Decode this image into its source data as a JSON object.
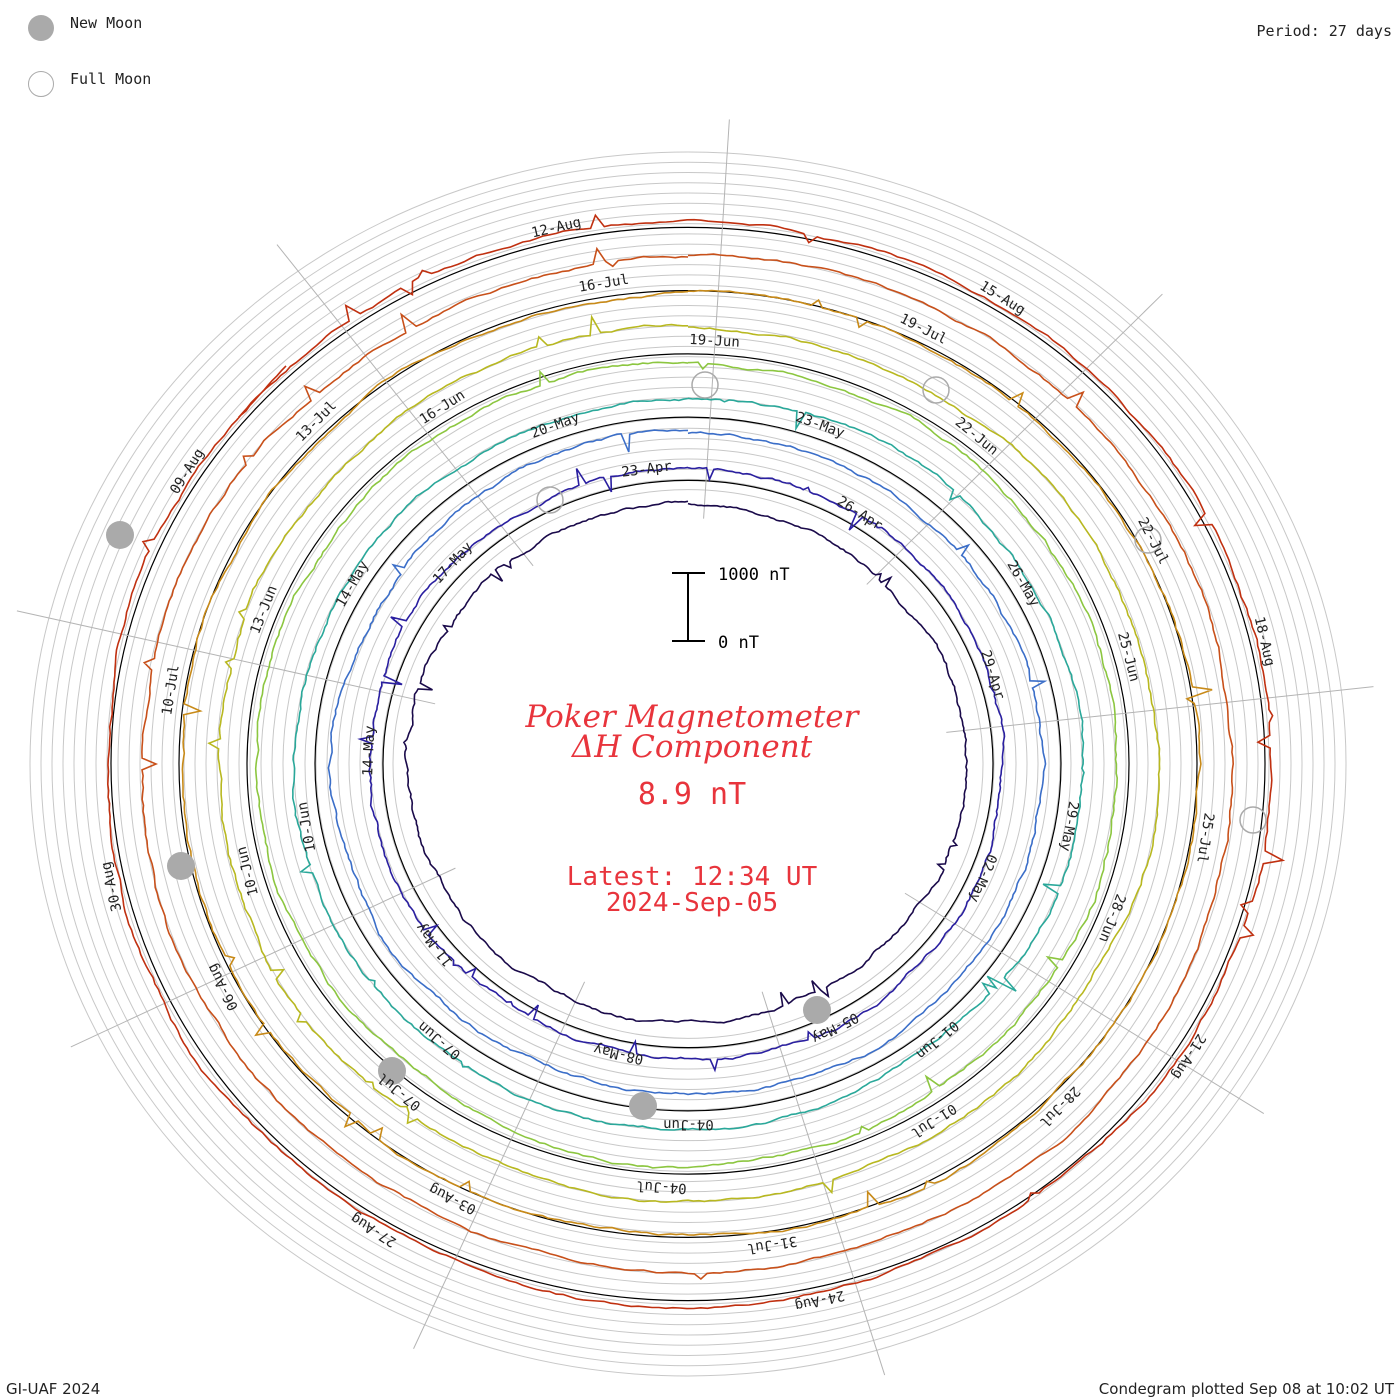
{
  "legend": {
    "new_moon": "New Moon",
    "full_moon": "Full Moon",
    "period": "Period: 27 days"
  },
  "footer": {
    "credit": "GI-UAF 2024",
    "plotted": "Condegram plotted Sep 08 at 10:02 UT"
  },
  "center": {
    "title_line1": "Poker Magnetometer",
    "title_line2": "ΔH Component",
    "value": "8.9 nT",
    "latest_label": "Latest: 12:34 UT",
    "latest_date": "2024-Sep-05"
  },
  "scale_bar": {
    "top_label": "1000 nT",
    "bottom_label": "0 nT"
  },
  "colors": {
    "accent_text": "#e8343c",
    "moon": "#aaaaaa",
    "rings": [
      "#1a0a4a",
      "#2a1fa0",
      "#3b6ec8",
      "#2aa89a",
      "#8cc640",
      "#b8b820",
      "#c88a18",
      "#c8501a",
      "#c03010"
    ]
  },
  "chart_data": {
    "type": "condegram",
    "period_days": 27,
    "date_labels": [
      {
        "ring": 0,
        "labels": [
          "23-Apr",
          "26-Apr",
          "29-Apr",
          "02-May",
          "05-May",
          "08-May",
          "11-May",
          "14-May",
          "17-May"
        ]
      },
      {
        "ring": 1,
        "labels": [
          "20-May",
          "23-May",
          "26-May",
          "29-May",
          "01-Jun",
          "04-Jun",
          "07-Jun",
          "10-Jun",
          "14-May"
        ]
      },
      {
        "ring": 2,
        "labels": [
          "16-Jun",
          "19-Jun",
          "22-Jun",
          "25-Jun",
          "28-Jun",
          "01-Jul",
          "04-Jul",
          "07-Jul",
          "10-Jun",
          "13-Jun"
        ]
      },
      {
        "ring": 3,
        "labels": [
          "13-Jul",
          "16-Jul",
          "19-Jul",
          "22-Jul",
          "25-Jul",
          "28-Jul",
          "31-Jul",
          "03-Aug",
          "06-Aug",
          "10-Jul"
        ]
      },
      {
        "ring": 4,
        "labels": [
          "09-Aug",
          "12-Aug",
          "15-Aug",
          "18-Aug",
          "21-Aug",
          "24-Aug",
          "27-Aug",
          "30-Aug"
        ]
      }
    ],
    "new_moons": [
      "06-May",
      "06-Jun",
      "05-Jul",
      "04-Aug",
      "03-Sep"
    ],
    "full_moons": [
      "23-Apr",
      "23-May",
      "22-Jun",
      "21-Jul",
      "19-Aug"
    ],
    "scale_nT": [
      0,
      1000
    ]
  }
}
